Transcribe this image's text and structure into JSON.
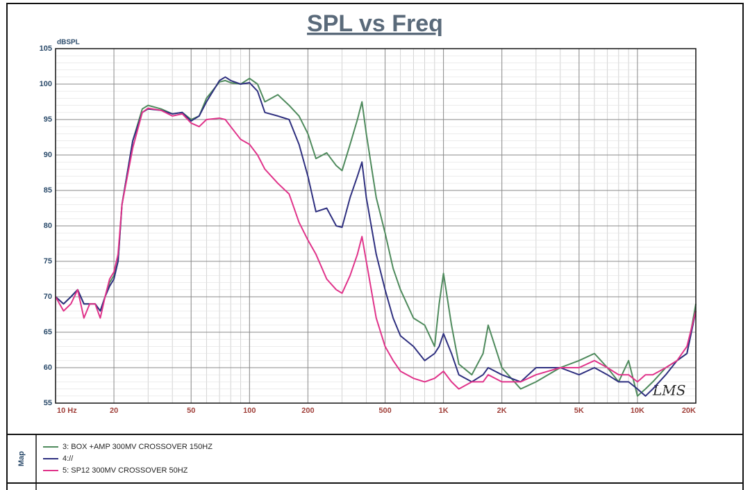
{
  "chart_data": {
    "type": "line",
    "title": "SPL vs Freq",
    "y_label": "dBSPL",
    "annotation": "LMS",
    "legend_title": "Map",
    "log_x": true,
    "grid": true,
    "xlim": [
      10,
      20000
    ],
    "ylim": [
      55,
      105
    ],
    "xticks": [
      {
        "value": 10,
        "label": "10 Hz"
      },
      20,
      50,
      100,
      200,
      500,
      {
        "value": 1000,
        "label": "1K"
      },
      {
        "value": 2000,
        "label": "2K"
      },
      {
        "value": 5000,
        "label": "5K"
      },
      {
        "value": 10000,
        "label": "10K"
      },
      {
        "value": 20000,
        "label": "20K"
      }
    ],
    "yticks": [
      55,
      60,
      65,
      70,
      75,
      80,
      85,
      90,
      95,
      100,
      105
    ],
    "x": [
      10,
      11,
      12,
      13,
      14,
      15,
      16,
      17,
      18,
      19,
      20,
      21,
      22,
      25,
      28,
      30,
      35,
      40,
      45,
      50,
      55,
      60,
      70,
      75,
      80,
      90,
      100,
      110,
      120,
      140,
      160,
      180,
      200,
      220,
      250,
      280,
      300,
      330,
      360,
      380,
      400,
      450,
      500,
      550,
      600,
      700,
      800,
      900,
      950,
      1000,
      1100,
      1200,
      1400,
      1600,
      1700,
      2000,
      2500,
      3000,
      4000,
      5000,
      6000,
      7000,
      8000,
      9000,
      10000,
      11000,
      12000,
      14000,
      16000,
      18000,
      20000
    ],
    "series": [
      {
        "name": "3: BOX +AMP 300MV CROSSOVER 150HZ",
        "color": "#4e8a5c",
        "values": [
          70,
          69,
          70,
          71,
          69,
          69,
          69,
          68,
          70,
          72,
          73,
          75,
          83,
          92,
          96.5,
          97,
          96.5,
          95.8,
          96,
          95,
          95.5,
          98,
          100.3,
          100.5,
          100.2,
          100,
          100.8,
          100,
          97.5,
          98.5,
          97,
          95.5,
          93,
          89.5,
          90.3,
          88.5,
          87.8,
          91.5,
          95,
          97.5,
          93,
          84,
          79,
          74,
          71,
          67,
          66,
          63,
          69,
          73.3,
          66,
          60.5,
          59,
          62,
          66,
          60,
          57,
          58,
          60,
          61,
          62,
          60,
          58,
          61,
          56,
          57,
          58,
          60,
          61,
          62,
          69
        ]
      },
      {
        "name": "4://",
        "color": "#2e2f7f",
        "values": [
          70,
          69,
          70,
          71,
          69,
          69,
          69,
          68,
          70,
          71.5,
          72.5,
          75,
          83,
          92,
          96,
          96.5,
          96.3,
          95.8,
          96,
          94.8,
          95.5,
          97.5,
          100.5,
          101,
          100.5,
          100,
          100.2,
          99,
          96,
          95.5,
          95,
          91.5,
          87,
          82,
          82.5,
          80,
          79.8,
          84,
          87,
          89,
          84,
          76,
          71,
          67,
          64.5,
          63,
          61,
          62,
          63,
          64.8,
          62,
          59,
          58,
          59,
          60,
          59,
          58,
          60,
          60,
          59,
          60,
          59,
          58,
          58,
          57,
          56,
          57,
          59,
          61,
          62,
          68
        ]
      },
      {
        "name": "5: SP12 300MV CROSSOVER 50HZ",
        "color": "#e0338a",
        "values": [
          70,
          68,
          69,
          71,
          67,
          69,
          69,
          67,
          70,
          72.5,
          73.5,
          76,
          83,
          91,
          96,
          96.6,
          96.3,
          95.5,
          95.8,
          94.5,
          94,
          95,
          95.2,
          95,
          94,
          92.2,
          91.5,
          90,
          88,
          86,
          84.5,
          80.5,
          78,
          76,
          72.5,
          71,
          70.5,
          73,
          76,
          78.5,
          75,
          67,
          63,
          61,
          59.5,
          58.5,
          58,
          58.5,
          59,
          59.5,
          58,
          57,
          58,
          58,
          59,
          58,
          58,
          59,
          60,
          60,
          61,
          60,
          59,
          59,
          58,
          59,
          59,
          60,
          61,
          63,
          68
        ]
      }
    ]
  }
}
